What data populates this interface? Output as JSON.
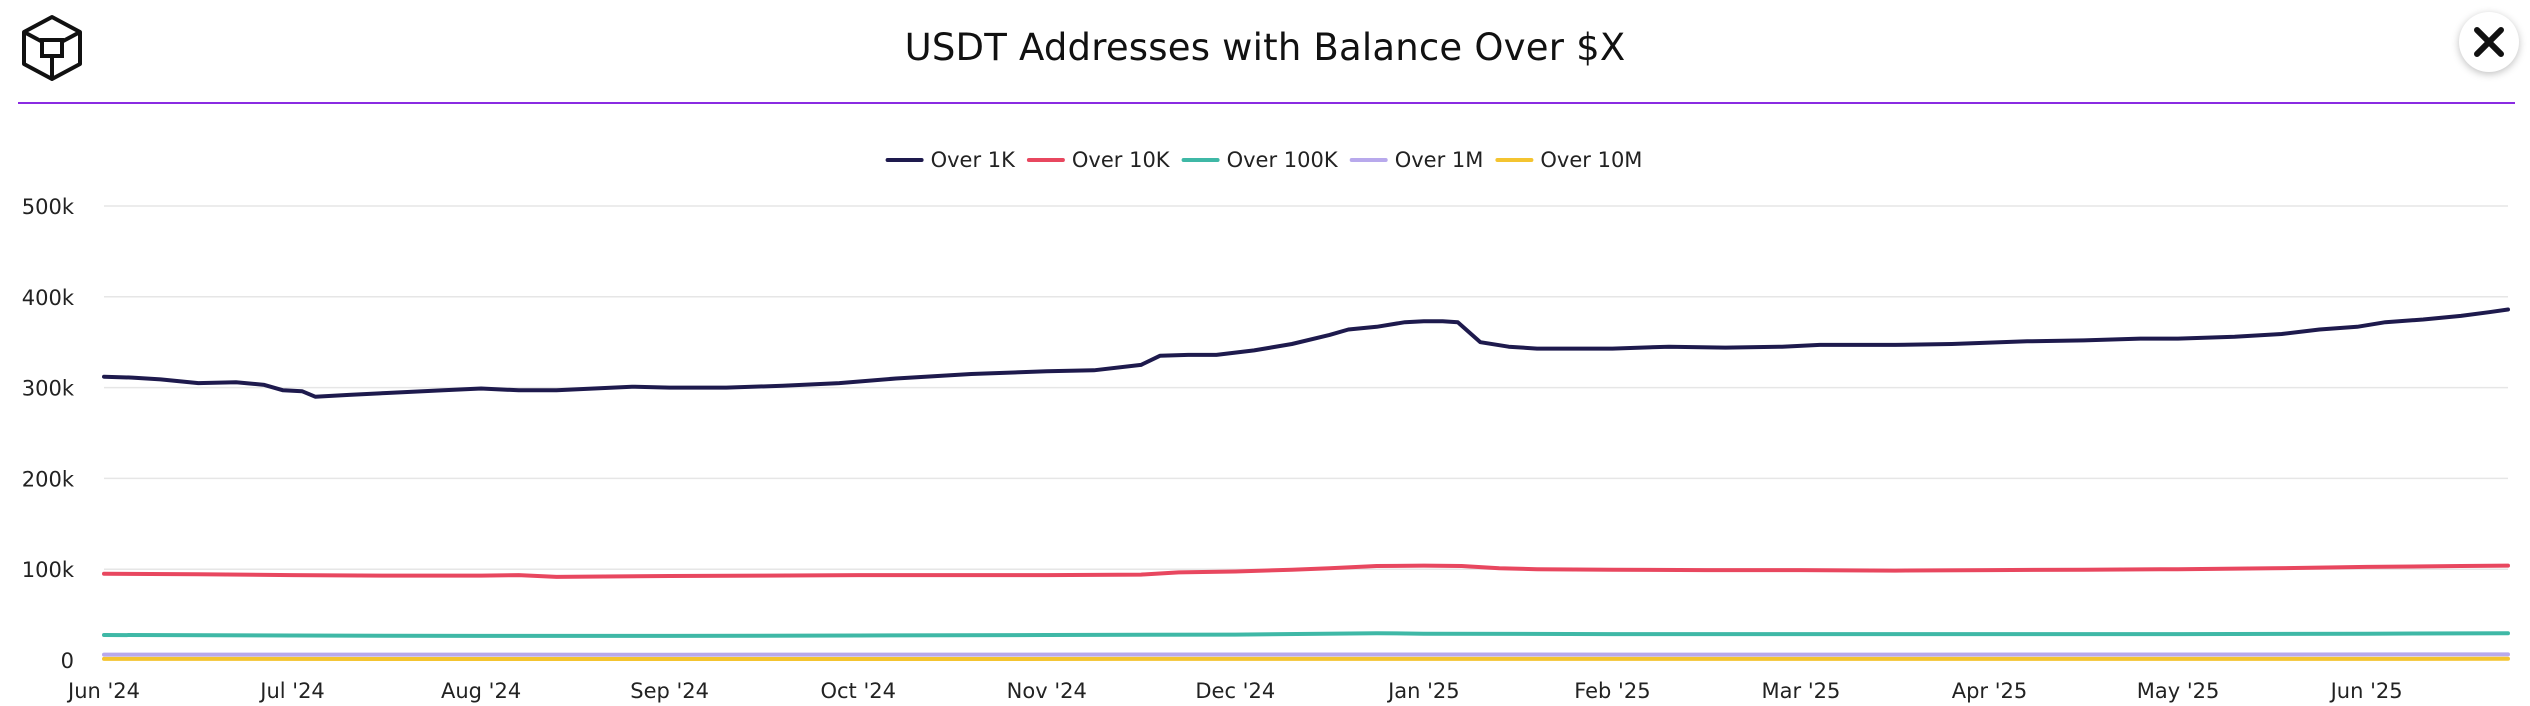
{
  "header": {
    "title": "USDT Addresses with Balance Over $X",
    "close_icon": "close-icon",
    "logo_icon": "block-logo-icon"
  },
  "colors": {
    "divider": "#8a2be2",
    "grid": "#e6e6e6"
  },
  "chart_data": {
    "type": "line",
    "title": "USDT Addresses with Balance Over $X",
    "xlabel": "",
    "ylabel": "",
    "ylim": [
      0,
      500000
    ],
    "yticks": [
      0,
      100000,
      200000,
      300000,
      400000,
      500000
    ],
    "ytick_labels": [
      "0",
      "100k",
      "200k",
      "300k",
      "400k",
      "500k"
    ],
    "x_range": [
      0,
      12.75
    ],
    "xticks": [
      0,
      1,
      2,
      3,
      4,
      5,
      6,
      7,
      8,
      9,
      10,
      11,
      12
    ],
    "xtick_labels": [
      "Jun '24",
      "Jul '24",
      "Aug '24",
      "Sep '24",
      "Oct '24",
      "Nov '24",
      "Dec '24",
      "Jan '25",
      "Feb '25",
      "Mar '25",
      "Apr '25",
      "May '25",
      "Jun '25"
    ],
    "legend_position": "top-center",
    "grid": true,
    "series": [
      {
        "name": "Over 1K",
        "color": "#1e1a4d",
        "points": [
          [
            0,
            312000
          ],
          [
            0.15,
            311000
          ],
          [
            0.3,
            309000
          ],
          [
            0.5,
            305000
          ],
          [
            0.7,
            306000
          ],
          [
            0.85,
            303000
          ],
          [
            0.95,
            297000
          ],
          [
            1.05,
            296000
          ],
          [
            1.12,
            290000
          ],
          [
            1.3,
            292000
          ],
          [
            1.5,
            294000
          ],
          [
            1.8,
            297000
          ],
          [
            2.0,
            299000
          ],
          [
            2.2,
            297000
          ],
          [
            2.4,
            297000
          ],
          [
            2.6,
            299000
          ],
          [
            2.8,
            301000
          ],
          [
            3.0,
            300000
          ],
          [
            3.3,
            300000
          ],
          [
            3.6,
            302000
          ],
          [
            3.9,
            305000
          ],
          [
            4.2,
            310000
          ],
          [
            4.6,
            315000
          ],
          [
            5.0,
            318000
          ],
          [
            5.25,
            319000
          ],
          [
            5.5,
            325000
          ],
          [
            5.6,
            335000
          ],
          [
            5.75,
            336000
          ],
          [
            5.9,
            336000
          ],
          [
            6.1,
            341000
          ],
          [
            6.3,
            348000
          ],
          [
            6.5,
            358000
          ],
          [
            6.6,
            364000
          ],
          [
            6.75,
            367000
          ],
          [
            6.9,
            372000
          ],
          [
            7.0,
            373000
          ],
          [
            7.1,
            373000
          ],
          [
            7.18,
            372000
          ],
          [
            7.3,
            350000
          ],
          [
            7.45,
            345000
          ],
          [
            7.6,
            343000
          ],
          [
            7.8,
            343000
          ],
          [
            8.0,
            343000
          ],
          [
            8.3,
            345000
          ],
          [
            8.6,
            344000
          ],
          [
            8.9,
            345000
          ],
          [
            9.1,
            347000
          ],
          [
            9.5,
            347000
          ],
          [
            9.8,
            348000
          ],
          [
            10.2,
            351000
          ],
          [
            10.5,
            352000
          ],
          [
            10.8,
            354000
          ],
          [
            11.0,
            354000
          ],
          [
            11.3,
            356000
          ],
          [
            11.55,
            359000
          ],
          [
            11.75,
            364000
          ],
          [
            11.95,
            367000
          ],
          [
            12.1,
            372000
          ],
          [
            12.3,
            375000
          ],
          [
            12.5,
            379000
          ],
          [
            12.65,
            383000
          ],
          [
            12.75,
            386000
          ]
        ]
      },
      {
        "name": "Over 10K",
        "color": "#e8475f",
        "points": [
          [
            0,
            95000
          ],
          [
            0.5,
            94500
          ],
          [
            1.0,
            93500
          ],
          [
            1.5,
            93000
          ],
          [
            2.0,
            93000
          ],
          [
            2.2,
            93500
          ],
          [
            2.4,
            91500
          ],
          [
            3.0,
            92500
          ],
          [
            3.5,
            93000
          ],
          [
            4.0,
            93500
          ],
          [
            4.5,
            93500
          ],
          [
            5.0,
            93500
          ],
          [
            5.5,
            94000
          ],
          [
            5.7,
            96500
          ],
          [
            6.0,
            97500
          ],
          [
            6.3,
            99500
          ],
          [
            6.5,
            101000
          ],
          [
            6.75,
            103500
          ],
          [
            7.0,
            104000
          ],
          [
            7.2,
            103500
          ],
          [
            7.4,
            101000
          ],
          [
            7.6,
            100000
          ],
          [
            8.0,
            99500
          ],
          [
            8.5,
            99000
          ],
          [
            9.0,
            99000
          ],
          [
            9.5,
            98500
          ],
          [
            10.0,
            99000
          ],
          [
            10.5,
            99500
          ],
          [
            11.0,
            100000
          ],
          [
            11.5,
            101000
          ],
          [
            12.0,
            102500
          ],
          [
            12.5,
            103500
          ],
          [
            12.75,
            104000
          ]
        ]
      },
      {
        "name": "Over 100K",
        "color": "#3fb8a6",
        "points": [
          [
            0,
            27500
          ],
          [
            1,
            27000
          ],
          [
            2,
            26500
          ],
          [
            3,
            26500
          ],
          [
            4,
            27000
          ],
          [
            5,
            27500
          ],
          [
            6,
            28000
          ],
          [
            6.75,
            29500
          ],
          [
            7,
            29000
          ],
          [
            8,
            28500
          ],
          [
            9,
            28500
          ],
          [
            10,
            28500
          ],
          [
            11,
            28500
          ],
          [
            12,
            29000
          ],
          [
            12.75,
            29500
          ]
        ]
      },
      {
        "name": "Over 1M",
        "color": "#b8a9ec",
        "points": [
          [
            0,
            6000
          ],
          [
            3,
            5800
          ],
          [
            6,
            6100
          ],
          [
            9,
            6000
          ],
          [
            12.75,
            6200
          ]
        ]
      },
      {
        "name": "Over 10M",
        "color": "#f4c430",
        "points": [
          [
            0,
            1200
          ],
          [
            3,
            1150
          ],
          [
            6,
            1250
          ],
          [
            9,
            1200
          ],
          [
            12.75,
            1300
          ]
        ]
      }
    ]
  }
}
